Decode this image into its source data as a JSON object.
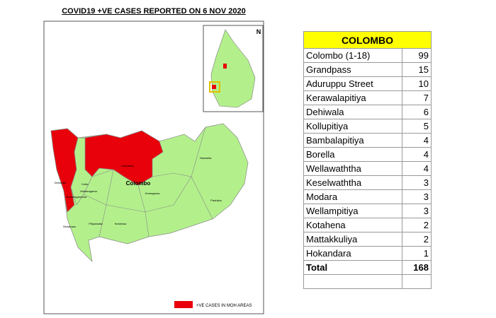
{
  "header": {
    "title": "COVID19 +VE CASES REPORTED ON 6 NOV 2020"
  },
  "map": {
    "labels": [
      "Colombo",
      "Kaduwela",
      "Maharagama",
      "Homagama",
      "Padukka",
      "Piliyandala",
      "Moratuwa",
      "Kotte",
      "Boralesgamuwa",
      "Kesbewa",
      "Dehiwala",
      "Hanwella"
    ],
    "legend": "+VE CASES IN MOH AREAS",
    "north": "N"
  },
  "table": {
    "header": "COLOMBO",
    "rows": [
      [
        "Colombo (1-18)",
        99
      ],
      [
        "Grandpass",
        15
      ],
      [
        "Aduruppu Street",
        10
      ],
      [
        "Kerawalapitiya",
        7
      ],
      [
        "Dehiwala",
        6
      ],
      [
        "Kollupitiya",
        5
      ],
      [
        "Bambalapitiya",
        4
      ],
      [
        "Borella",
        4
      ],
      [
        "Wellawaththa",
        4
      ],
      [
        "Keselwaththa",
        3
      ],
      [
        "Modara",
        3
      ],
      [
        "Wellampitiya",
        3
      ],
      [
        "Kotahena",
        2
      ],
      [
        "Mattakkuliya",
        2
      ],
      [
        "Hokandara",
        1
      ]
    ],
    "total": [
      "Total",
      168
    ]
  }
}
